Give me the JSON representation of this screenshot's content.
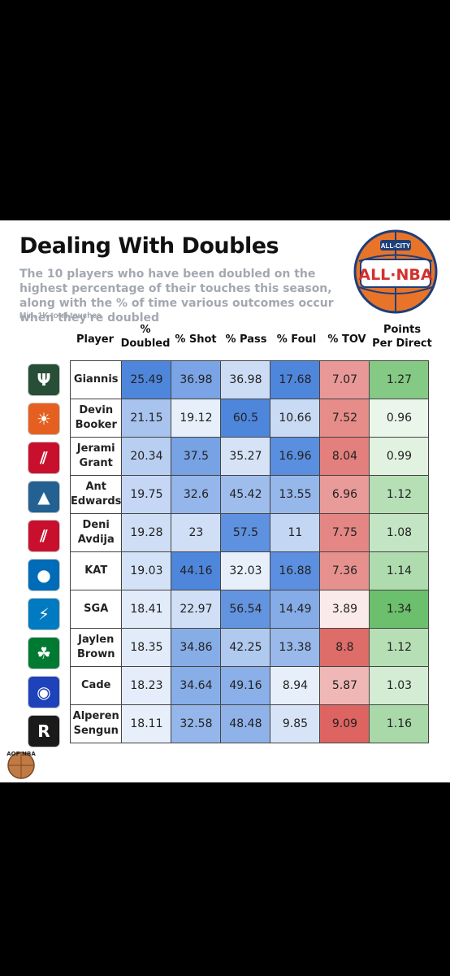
{
  "header": {
    "title": "Dealing With Doubles",
    "subtitle": "The 10 players who have been doubled on the highest percentage of their touches this season, along with the % of time various outcomes occur when they're doubled",
    "note": "Min. 1K total touches"
  },
  "logo": {
    "top_text": "ALL-CITY",
    "main_text": "ALL·NBA",
    "colors": {
      "orange": "#e8742a",
      "navy": "#1d3f7a",
      "red": "#d2322d"
    }
  },
  "watermark": {
    "text": "AOP NBA"
  },
  "chart_data": {
    "type": "table",
    "title": "Dealing With Doubles",
    "columns": [
      "Player",
      "% Doubled",
      "% Shot",
      "% Pass",
      "% Foul",
      "% TOV",
      "Points Per Direct"
    ],
    "column_headers": [
      {
        "line1": "Player",
        "line2": ""
      },
      {
        "line1": "%",
        "line2": "Doubled"
      },
      {
        "line1": "% Shot",
        "line2": ""
      },
      {
        "line1": "% Pass",
        "line2": ""
      },
      {
        "line1": "% Foul",
        "line2": ""
      },
      {
        "line1": "% TOV",
        "line2": ""
      },
      {
        "line1": "Points",
        "line2": "Per Direct"
      }
    ],
    "rows": [
      {
        "player": [
          "Giannis"
        ],
        "team_icon": "bucks-logo-icon",
        "values": [
          25.49,
          36.98,
          36.98,
          17.68,
          7.07,
          1.27
        ]
      },
      {
        "player": [
          "Devin",
          "Booker"
        ],
        "team_icon": "suns-logo-icon",
        "values": [
          21.15,
          19.12,
          60.5,
          10.66,
          7.52,
          0.96
        ]
      },
      {
        "player": [
          "Jerami",
          "Grant"
        ],
        "team_icon": "blazers-logo-icon",
        "values": [
          20.34,
          37.5,
          35.27,
          16.96,
          8.04,
          0.99
        ]
      },
      {
        "player": [
          "Ant",
          "Edwards"
        ],
        "team_icon": "timberwolves-logo-icon",
        "values": [
          19.75,
          32.6,
          45.42,
          13.55,
          6.96,
          1.12
        ]
      },
      {
        "player": [
          "Deni",
          "Avdija"
        ],
        "team_icon": "blazers-logo-icon",
        "values": [
          19.28,
          23,
          57.5,
          11,
          7.75,
          1.08
        ]
      },
      {
        "player": [
          "KAT"
        ],
        "team_icon": "knicks-logo-icon",
        "values": [
          19.03,
          44.16,
          32.03,
          16.88,
          7.36,
          1.14
        ]
      },
      {
        "player": [
          "SGA"
        ],
        "team_icon": "thunder-logo-icon",
        "values": [
          18.41,
          22.97,
          56.54,
          14.49,
          3.89,
          1.34
        ]
      },
      {
        "player": [
          "Jaylen",
          "Brown"
        ],
        "team_icon": "celtics-logo-icon",
        "values": [
          18.35,
          34.86,
          42.25,
          13.38,
          8.8,
          1.12
        ]
      },
      {
        "player": [
          "Cade"
        ],
        "team_icon": "pistons-logo-icon",
        "values": [
          18.23,
          34.64,
          49.16,
          8.94,
          5.87,
          1.03
        ]
      },
      {
        "player": [
          "Alperen",
          "Sengun"
        ],
        "team_icon": "rockets-logo-icon",
        "values": [
          18.11,
          32.58,
          48.48,
          9.85,
          9.09,
          1.16
        ]
      }
    ],
    "color_scales": {
      "blue_columns": "#3a78d8",
      "tov_column": "#d9534f",
      "ppd_column": "#5cb85c"
    }
  },
  "team_colors": {
    "bucks-logo-icon": "#274e37",
    "suns-logo-icon": "#e56020",
    "blazers-logo-icon": "#c8102e",
    "timberwolves-logo-icon": "#236192",
    "knicks-logo-icon": "#006bb6",
    "thunder-logo-icon": "#007ac1",
    "celtics-logo-icon": "#007a33",
    "pistons-logo-icon": "#1d42ba",
    "rockets-logo-icon": "#1a1a1a"
  }
}
